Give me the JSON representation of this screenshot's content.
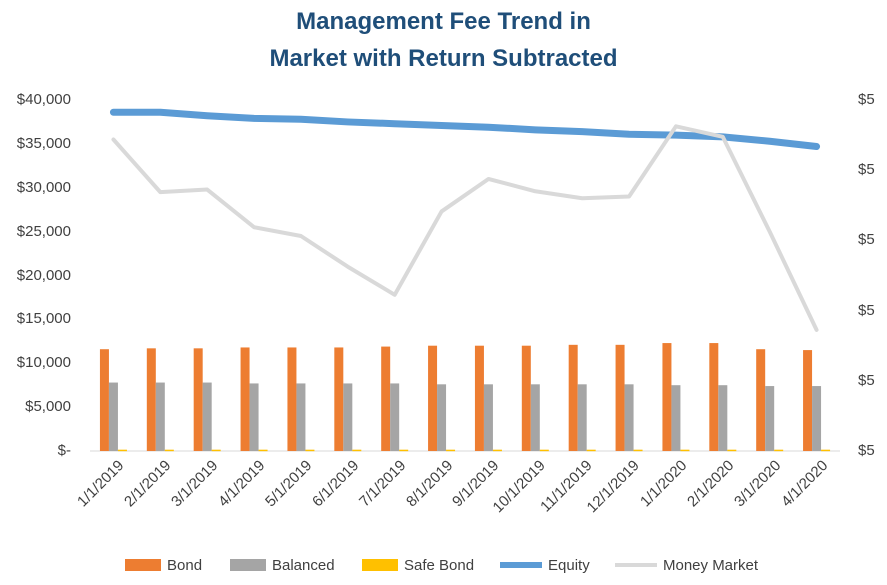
{
  "chart_data": {
    "type": "bar",
    "title_line1": "Management Fee Trend in",
    "title_line2": "Market with Return Subtracted",
    "categories": [
      "1/1/2019",
      "2/1/2019",
      "3/1/2019",
      "4/1/2019",
      "5/1/2019",
      "6/1/2019",
      "7/1/2019",
      "8/1/2019",
      "9/1/2019",
      "10/1/2019",
      "11/1/2019",
      "12/1/2019",
      "1/1/2020",
      "2/1/2020",
      "3/1/2020",
      "4/1/2020"
    ],
    "y_left": {
      "min": 0,
      "max": 40000,
      "ticks": [
        "$-",
        "$5,000",
        "$10,000",
        "$15,000",
        "$20,000",
        "$25,000",
        "$30,000",
        "$35,000",
        "$40,000"
      ]
    },
    "y_right": {
      "ticks": [
        "$5",
        "$5",
        "$5",
        "$5",
        "$5",
        "$5"
      ]
    },
    "series": [
      {
        "name": "Bond",
        "kind": "bar",
        "axis": "left",
        "color": "#ed7d31",
        "values": [
          11600,
          11700,
          11700,
          11800,
          11800,
          11800,
          11900,
          12000,
          12000,
          12000,
          12100,
          12100,
          12300,
          12300,
          11600,
          11500
        ]
      },
      {
        "name": "Balanced",
        "kind": "bar",
        "axis": "left",
        "color": "#a5a5a5",
        "values": [
          7800,
          7800,
          7800,
          7700,
          7700,
          7700,
          7700,
          7600,
          7600,
          7600,
          7600,
          7600,
          7500,
          7500,
          7400,
          7400
        ]
      },
      {
        "name": "Safe Bond",
        "kind": "bar",
        "axis": "left",
        "color": "#ffc000",
        "values": [
          150,
          150,
          150,
          150,
          150,
          150,
          150,
          150,
          150,
          150,
          150,
          150,
          150,
          150,
          150,
          150
        ]
      },
      {
        "name": "Equity",
        "kind": "line",
        "axis": "left",
        "color": "#5b9bd5",
        "values": [
          38600,
          38600,
          38200,
          37900,
          37800,
          37500,
          37300,
          37100,
          36900,
          36600,
          36400,
          36100,
          36000,
          35800,
          35300,
          34700
        ]
      },
      {
        "name": "Money Market",
        "kind": "line",
        "axis": "right",
        "color": "#d9d9d9",
        "values": [
          35500,
          29500,
          29800,
          25500,
          24500,
          21000,
          17800,
          27300,
          31000,
          29600,
          28800,
          29000,
          37000,
          35800,
          25000,
          13800
        ]
      }
    ],
    "legend": [
      "Bond",
      "Balanced",
      "Safe Bond",
      "Equity",
      "Money Market"
    ],
    "legend_position": "bottom",
    "grid": false
  }
}
